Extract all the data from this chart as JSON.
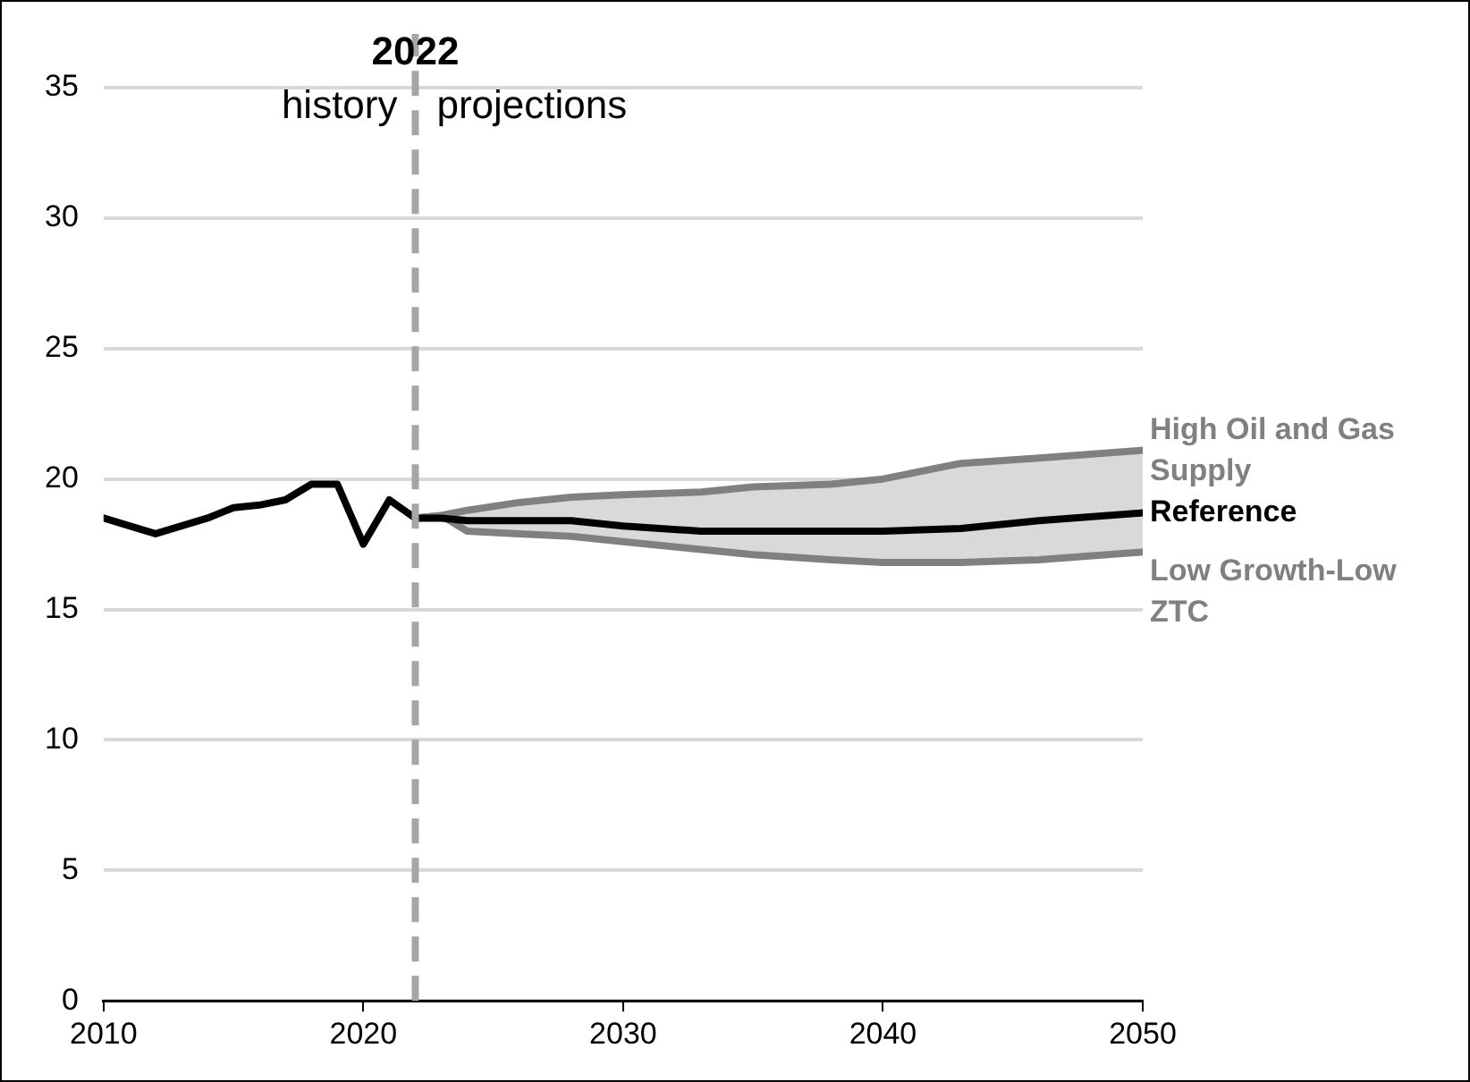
{
  "chart_data": {
    "type": "line",
    "series": [
      {
        "name": "High Oil and Gas Supply",
        "color": "#808080",
        "x": [
          2022,
          2023,
          2024,
          2026,
          2028,
          2030,
          2033,
          2035,
          2038,
          2040,
          2043,
          2046,
          2050
        ],
        "values": [
          18.5,
          18.6,
          18.8,
          19.1,
          19.3,
          19.4,
          19.5,
          19.7,
          19.8,
          20.0,
          20.6,
          20.8,
          21.1
        ]
      },
      {
        "name": "Low Growth-Low ZTC",
        "color": "#808080",
        "x": [
          2022,
          2023,
          2024,
          2026,
          2028,
          2030,
          2033,
          2035,
          2038,
          2040,
          2043,
          2046,
          2050
        ],
        "values": [
          18.5,
          18.6,
          18.0,
          17.9,
          17.8,
          17.6,
          17.3,
          17.1,
          16.9,
          16.8,
          16.8,
          16.9,
          17.2
        ]
      },
      {
        "name": "Reference",
        "color": "#000000",
        "x": [
          2010,
          2011,
          2012,
          2013,
          2014,
          2015,
          2016,
          2017,
          2018,
          2019,
          2020,
          2021,
          2022,
          2023,
          2024,
          2026,
          2028,
          2030,
          2033,
          2035,
          2038,
          2040,
          2043,
          2046,
          2050
        ],
        "values": [
          18.5,
          18.2,
          17.9,
          18.2,
          18.5,
          18.9,
          19.0,
          19.2,
          19.8,
          19.8,
          17.5,
          19.2,
          18.5,
          18.5,
          18.4,
          18.4,
          18.4,
          18.2,
          18.0,
          18.0,
          18.0,
          18.0,
          18.1,
          18.4,
          18.7
        ],
        "lower": [
          null,
          null,
          null,
          null,
          null,
          null,
          null,
          null,
          null,
          null,
          null,
          null,
          18.5,
          18.6,
          18.0,
          17.9,
          17.8,
          17.6,
          17.3,
          17.1,
          16.9,
          16.8,
          16.8,
          16.9,
          17.2
        ],
        "upper": [
          null,
          null,
          null,
          null,
          null,
          null,
          null,
          null,
          null,
          null,
          null,
          null,
          18.5,
          18.6,
          18.8,
          19.1,
          19.3,
          19.4,
          19.5,
          19.7,
          19.8,
          20.0,
          20.6,
          20.8,
          21.1
        ]
      }
    ],
    "xlim": [
      2010,
      2050
    ],
    "xticks": [
      2010,
      2020,
      2030,
      2040,
      2050
    ],
    "ylim": [
      0,
      35
    ],
    "yticks": [
      0,
      5,
      10,
      15,
      20,
      25,
      30,
      35
    ],
    "grid": "y",
    "legend": false,
    "marker": "none",
    "line_style": "solid",
    "ref_lines": [
      {
        "axis": "x",
        "value": 2022,
        "label": "2022",
        "color": "#a6a6a6",
        "line_style": "dashed"
      }
    ],
    "annotations": [
      "history",
      "projections"
    ]
  }
}
